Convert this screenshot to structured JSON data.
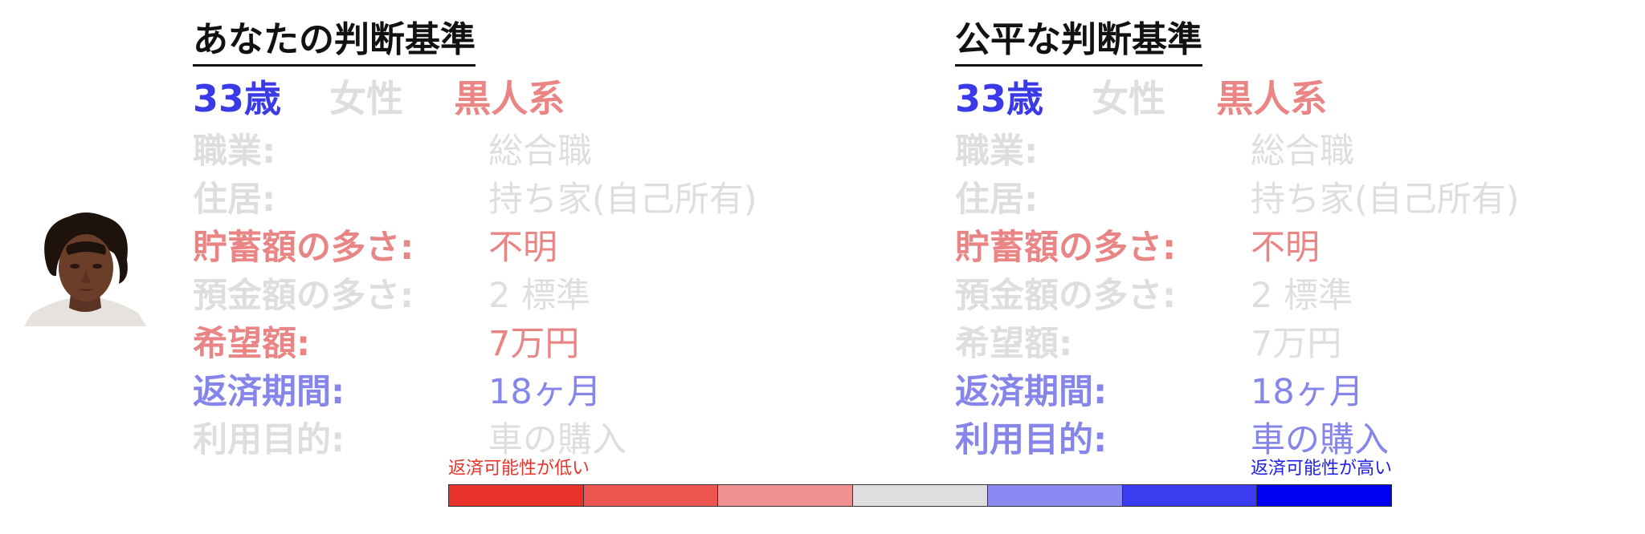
{
  "colors": {
    "inactive": "#dedede",
    "red": "#ea8585",
    "blue": "#8585ea",
    "age_blue": "#3a3ae6",
    "title": "#111111"
  },
  "left": {
    "title": "あなたの判断基準",
    "demographics": {
      "age": "33歳",
      "gender": "女性",
      "race": "黒人系"
    },
    "rows": [
      {
        "label": "職業:",
        "value": "総合職"
      },
      {
        "label": "住居:",
        "value": "持ち家(自己所有)"
      },
      {
        "label": "貯蓄額の多さ:",
        "value": "不明"
      },
      {
        "label": "預金額の多さ:",
        "value": "2 標準"
      },
      {
        "label": "希望額:",
        "value": "7万円"
      },
      {
        "label": "返済期間:",
        "value": "18ヶ月"
      },
      {
        "label": "利用目的:",
        "value": "車の購入"
      }
    ]
  },
  "right": {
    "title": "公平な判断基準",
    "demographics": {
      "age": "33歳",
      "gender": "女性",
      "race": "黒人系"
    },
    "rows": [
      {
        "label": "職業:",
        "value": "総合職"
      },
      {
        "label": "住居:",
        "value": "持ち家(自己所有)"
      },
      {
        "label": "貯蓄額の多さ:",
        "value": "不明"
      },
      {
        "label": "預金額の多さ:",
        "value": "2 標準"
      },
      {
        "label": "希望額:",
        "value": "7万円"
      },
      {
        "label": "返済期間:",
        "value": "18ヶ月"
      },
      {
        "label": "利用目的:",
        "value": "車の購入"
      }
    ]
  },
  "legend": {
    "low_label": "返済可能性が低い",
    "high_label": "返済可能性が高い",
    "scale_colors": [
      "#e8322a",
      "#ec5550",
      "#f09090",
      "#dedede",
      "#8a8af2",
      "#3c3cf0",
      "#0000f2"
    ]
  }
}
